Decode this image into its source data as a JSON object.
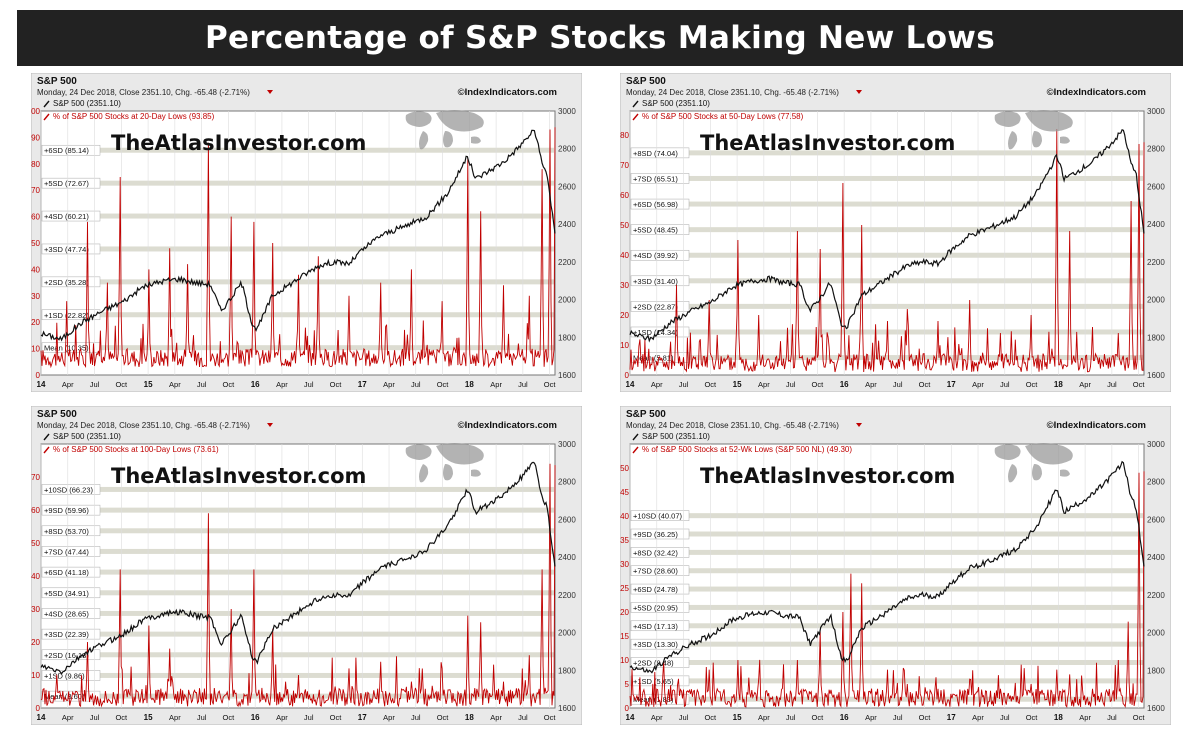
{
  "page_title": "Percentage of S&P Stocks Making New Lows",
  "colors": {
    "title_bg": "#222222",
    "sp500_line": "#111111",
    "indicator_line": "#c00000",
    "band": "#d8d8cc",
    "plot_bg": "#ffffff",
    "panel_bg": "#e9e9e9"
  },
  "chart_data": [
    {
      "type": "line",
      "symbol": "S&P 500",
      "subtitle": "Monday, 24 Dec 2018, Close 2351.10, Chg. -65.48 (-2.71%)",
      "copyright": "©IndexIndicators.com",
      "watermark": "TheAtlasInvestor.com",
      "legend": [
        "S&P 500 (2351.10)",
        "% of S&P 500 Stocks at 20-Day Lows (93.85)"
      ],
      "left_axis": {
        "ticks": [
          0,
          10,
          20,
          30,
          40,
          50,
          60,
          70,
          80,
          90,
          100
        ],
        "ylim": [
          0,
          100
        ]
      },
      "right_axis": {
        "ticks": [
          1600,
          1800,
          2000,
          2200,
          2400,
          2600,
          2800,
          3000
        ],
        "ylim": [
          1600,
          3000
        ]
      },
      "x_ticks": [
        "14",
        "Apr",
        "Jul",
        "Oct",
        "15",
        "Apr",
        "Jul",
        "Oct",
        "16",
        "Apr",
        "Jul",
        "Oct",
        "17",
        "Apr",
        "Jul",
        "Oct",
        "18",
        "Apr",
        "Jul",
        "Oct"
      ],
      "sd_bands": [
        {
          "label": "+6SD (85.14)",
          "value": 85.14
        },
        {
          "label": "+5SD (72.67)",
          "value": 72.67
        },
        {
          "label": "+4SD (60.21)",
          "value": 60.21
        },
        {
          "label": "+3SD (47.74)",
          "value": 47.74
        },
        {
          "label": "+2SD (35.28)",
          "value": 35.28
        },
        {
          "label": "+1SD (22.82)",
          "value": 22.82
        },
        {
          "label": "Mean (10.35)",
          "value": 10.35
        }
      ],
      "last_value": 93.85,
      "baseline": 3,
      "spikes": [
        [
          0.05,
          28
        ],
        [
          0.09,
          58
        ],
        [
          0.13,
          35
        ],
        [
          0.155,
          75
        ],
        [
          0.21,
          40
        ],
        [
          0.25,
          48
        ],
        [
          0.285,
          42
        ],
        [
          0.325,
          88
        ],
        [
          0.37,
          60
        ],
        [
          0.415,
          58
        ],
        [
          0.45,
          50
        ],
        [
          0.5,
          38
        ],
        [
          0.54,
          45
        ],
        [
          0.6,
          30
        ],
        [
          0.66,
          35
        ],
        [
          0.72,
          40
        ],
        [
          0.78,
          28
        ],
        [
          0.83,
          82
        ],
        [
          0.855,
          62
        ],
        [
          0.9,
          34
        ],
        [
          0.95,
          30
        ],
        [
          0.975,
          78
        ],
        [
          0.99,
          93
        ]
      ],
      "sp500": [
        [
          0,
          1820
        ],
        [
          0.04,
          1790
        ],
        [
          0.08,
          1880
        ],
        [
          0.12,
          1940
        ],
        [
          0.16,
          1990
        ],
        [
          0.2,
          2070
        ],
        [
          0.24,
          2100
        ],
        [
          0.27,
          2110
        ],
        [
          0.3,
          2090
        ],
        [
          0.33,
          2080
        ],
        [
          0.35,
          1940
        ],
        [
          0.37,
          2010
        ],
        [
          0.39,
          2090
        ],
        [
          0.41,
          1880
        ],
        [
          0.42,
          1840
        ],
        [
          0.45,
          2020
        ],
        [
          0.5,
          2110
        ],
        [
          0.54,
          2180
        ],
        [
          0.57,
          2200
        ],
        [
          0.6,
          2190
        ],
        [
          0.62,
          2250
        ],
        [
          0.66,
          2340
        ],
        [
          0.7,
          2380
        ],
        [
          0.75,
          2440
        ],
        [
          0.79,
          2560
        ],
        [
          0.83,
          2760
        ],
        [
          0.845,
          2640
        ],
        [
          0.87,
          2680
        ],
        [
          0.9,
          2730
        ],
        [
          0.93,
          2810
        ],
        [
          0.96,
          2900
        ],
        [
          0.975,
          2720
        ],
        [
          0.985,
          2660
        ],
        [
          1.0,
          2351
        ]
      ]
    },
    {
      "type": "line",
      "symbol": "S&P 500",
      "subtitle": "Monday, 24 Dec 2018, Close 2351.10, Chg. -65.48 (-2.71%)",
      "copyright": "©IndexIndicators.com",
      "watermark": "TheAtlasInvestor.com",
      "legend": [
        "S&P 500 (2351.10)",
        "% of S&P 500 Stocks at 50-Day Lows (77.58)"
      ],
      "left_axis": {
        "ticks": [
          0,
          10,
          20,
          30,
          40,
          50,
          60,
          70,
          80
        ],
        "ylim": [
          0,
          88
        ]
      },
      "right_axis": {
        "ticks": [
          1600,
          1800,
          2000,
          2200,
          2400,
          2600,
          2800,
          3000
        ],
        "ylim": [
          1600,
          3000
        ]
      },
      "x_ticks": [
        "14",
        "Apr",
        "Jul",
        "Oct",
        "15",
        "Apr",
        "Jul",
        "Oct",
        "16",
        "Apr",
        "Jul",
        "Oct",
        "17",
        "Apr",
        "Jul",
        "Oct",
        "18",
        "Apr",
        "Jul",
        "Oct"
      ],
      "sd_bands": [
        {
          "label": "+8SD (74.04)",
          "value": 74.04
        },
        {
          "label": "+7SD (65.51)",
          "value": 65.51
        },
        {
          "label": "+6SD (56.98)",
          "value": 56.98
        },
        {
          "label": "+5SD (48.45)",
          "value": 48.45
        },
        {
          "label": "+4SD (39.92)",
          "value": 39.92
        },
        {
          "label": "+3SD (31.40)",
          "value": 31.4
        },
        {
          "label": "+2SD (22.87)",
          "value": 22.87
        },
        {
          "label": "+1SD (14.34)",
          "value": 14.34
        },
        {
          "label": "Mean (5.81)",
          "value": 5.81
        }
      ],
      "last_value": 77.58,
      "baseline": 1,
      "spikes": [
        [
          0.09,
          30
        ],
        [
          0.155,
          25
        ],
        [
          0.21,
          45
        ],
        [
          0.25,
          20
        ],
        [
          0.325,
          48
        ],
        [
          0.37,
          42
        ],
        [
          0.415,
          64
        ],
        [
          0.45,
          50
        ],
        [
          0.5,
          18
        ],
        [
          0.54,
          22
        ],
        [
          0.6,
          18
        ],
        [
          0.66,
          25
        ],
        [
          0.72,
          14
        ],
        [
          0.78,
          20
        ],
        [
          0.83,
          82
        ],
        [
          0.855,
          48
        ],
        [
          0.9,
          16
        ],
        [
          0.95,
          14
        ],
        [
          0.975,
          58
        ],
        [
          0.99,
          77
        ]
      ],
      "sp500": [
        [
          0,
          1820
        ],
        [
          0.04,
          1790
        ],
        [
          0.08,
          1880
        ],
        [
          0.12,
          1940
        ],
        [
          0.16,
          1990
        ],
        [
          0.2,
          2070
        ],
        [
          0.24,
          2100
        ],
        [
          0.27,
          2110
        ],
        [
          0.3,
          2090
        ],
        [
          0.33,
          2080
        ],
        [
          0.35,
          1940
        ],
        [
          0.37,
          2010
        ],
        [
          0.39,
          2090
        ],
        [
          0.41,
          1880
        ],
        [
          0.42,
          1840
        ],
        [
          0.45,
          2020
        ],
        [
          0.5,
          2110
        ],
        [
          0.54,
          2180
        ],
        [
          0.57,
          2200
        ],
        [
          0.6,
          2190
        ],
        [
          0.62,
          2250
        ],
        [
          0.66,
          2340
        ],
        [
          0.7,
          2380
        ],
        [
          0.75,
          2440
        ],
        [
          0.79,
          2560
        ],
        [
          0.83,
          2760
        ],
        [
          0.845,
          2640
        ],
        [
          0.87,
          2680
        ],
        [
          0.9,
          2730
        ],
        [
          0.93,
          2810
        ],
        [
          0.96,
          2900
        ],
        [
          0.975,
          2720
        ],
        [
          0.985,
          2660
        ],
        [
          1.0,
          2351
        ]
      ]
    },
    {
      "type": "line",
      "symbol": "S&P 500",
      "subtitle": "Monday, 24 Dec 2018, Close 2351.10, Chg. -65.48 (-2.71%)",
      "copyright": "©IndexIndicators.com",
      "watermark": "TheAtlasInvestor.com",
      "legend": [
        "S&P 500 (2351.10)",
        "% of S&P 500 Stocks at 100-Day Lows (73.61)"
      ],
      "left_axis": {
        "ticks": [
          0,
          10,
          20,
          30,
          40,
          50,
          60,
          70
        ],
        "ylim": [
          0,
          80
        ]
      },
      "right_axis": {
        "ticks": [
          1600,
          1800,
          2000,
          2200,
          2400,
          2600,
          2800,
          3000
        ],
        "ylim": [
          1600,
          3000
        ]
      },
      "x_ticks": [
        "14",
        "Apr",
        "Jul",
        "Oct",
        "15",
        "Apr",
        "Jul",
        "Oct",
        "16",
        "Apr",
        "Jul",
        "Oct",
        "17",
        "Apr",
        "Jul",
        "Oct",
        "18",
        "Apr",
        "Jul",
        "Oct"
      ],
      "sd_bands": [
        {
          "label": "+10SD (66.23)",
          "value": 66.23
        },
        {
          "label": "+9SD (59.96)",
          "value": 59.96
        },
        {
          "label": "+8SD (53.70)",
          "value": 53.7
        },
        {
          "label": "+7SD (47.44)",
          "value": 47.44
        },
        {
          "label": "+6SD (41.18)",
          "value": 41.18
        },
        {
          "label": "+5SD (34.91)",
          "value": 34.91
        },
        {
          "label": "+4SD (28.65)",
          "value": 28.65
        },
        {
          "label": "+3SD (22.39)",
          "value": 22.39
        },
        {
          "label": "+2SD (16.13)",
          "value": 16.13
        },
        {
          "label": "+1SD (9.86)",
          "value": 9.86
        },
        {
          "label": "Mean (3.60)",
          "value": 3.6
        }
      ],
      "last_value": 73.61,
      "baseline": 0.5,
      "spikes": [
        [
          0.09,
          20
        ],
        [
          0.155,
          42
        ],
        [
          0.21,
          25
        ],
        [
          0.25,
          18
        ],
        [
          0.325,
          59
        ],
        [
          0.37,
          30
        ],
        [
          0.415,
          42
        ],
        [
          0.45,
          24
        ],
        [
          0.5,
          10
        ],
        [
          0.6,
          12
        ],
        [
          0.66,
          14
        ],
        [
          0.72,
          8
        ],
        [
          0.78,
          12
        ],
        [
          0.83,
          28
        ],
        [
          0.855,
          26
        ],
        [
          0.9,
          8
        ],
        [
          0.95,
          16
        ],
        [
          0.975,
          42
        ],
        [
          0.99,
          74
        ]
      ],
      "sp500": [
        [
          0,
          1820
        ],
        [
          0.04,
          1790
        ],
        [
          0.08,
          1880
        ],
        [
          0.12,
          1940
        ],
        [
          0.16,
          1990
        ],
        [
          0.2,
          2070
        ],
        [
          0.24,
          2100
        ],
        [
          0.27,
          2110
        ],
        [
          0.3,
          2090
        ],
        [
          0.33,
          2080
        ],
        [
          0.35,
          1940
        ],
        [
          0.37,
          2010
        ],
        [
          0.39,
          2090
        ],
        [
          0.41,
          1880
        ],
        [
          0.42,
          1840
        ],
        [
          0.45,
          2020
        ],
        [
          0.5,
          2110
        ],
        [
          0.54,
          2180
        ],
        [
          0.57,
          2200
        ],
        [
          0.6,
          2190
        ],
        [
          0.62,
          2250
        ],
        [
          0.66,
          2340
        ],
        [
          0.7,
          2380
        ],
        [
          0.75,
          2440
        ],
        [
          0.79,
          2560
        ],
        [
          0.83,
          2760
        ],
        [
          0.845,
          2640
        ],
        [
          0.87,
          2680
        ],
        [
          0.9,
          2730
        ],
        [
          0.93,
          2810
        ],
        [
          0.96,
          2900
        ],
        [
          0.975,
          2720
        ],
        [
          0.985,
          2660
        ],
        [
          1.0,
          2351
        ]
      ]
    },
    {
      "type": "line",
      "symbol": "S&P 500",
      "subtitle": "Monday, 24 Dec 2018, Close 2351.10, Chg. -65.48 (-2.71%)",
      "copyright": "©IndexIndicators.com",
      "watermark": "TheAtlasInvestor.com",
      "legend": [
        "S&P 500 (2351.10)",
        "% of S&P 500 Stocks at 52-Wk Lows (S&P 500 NL) (49.30)"
      ],
      "left_axis": {
        "ticks": [
          0,
          5,
          10,
          15,
          20,
          25,
          30,
          35,
          40,
          45,
          50
        ],
        "ylim": [
          0,
          55
        ]
      },
      "right_axis": {
        "ticks": [
          1600,
          1800,
          2000,
          2200,
          2400,
          2600,
          2800,
          3000
        ],
        "ylim": [
          1600,
          3000
        ]
      },
      "x_ticks": [
        "14",
        "Apr",
        "Jul",
        "Oct",
        "15",
        "Apr",
        "Jul",
        "Oct",
        "16",
        "Apr",
        "Jul",
        "Oct",
        "17",
        "Apr",
        "Jul",
        "Oct",
        "18",
        "Apr",
        "Jul",
        "Oct"
      ],
      "sd_bands": [
        {
          "label": "+10SD (40.07)",
          "value": 40.07
        },
        {
          "label": "+9SD (36.25)",
          "value": 36.25
        },
        {
          "label": "+8SD (32.42)",
          "value": 32.42
        },
        {
          "label": "+7SD (28.60)",
          "value": 28.6
        },
        {
          "label": "+6SD (24.78)",
          "value": 24.78
        },
        {
          "label": "+5SD (20.95)",
          "value": 20.95
        },
        {
          "label": "+4SD (17.13)",
          "value": 17.13
        },
        {
          "label": "+3SD (13.30)",
          "value": 13.3
        },
        {
          "label": "+2SD (9.48)",
          "value": 9.48
        },
        {
          "label": "+1SD (5.65)",
          "value": 5.65
        },
        {
          "label": "Mean (1.83)",
          "value": 1.83
        }
      ],
      "last_value": 49.3,
      "baseline": 0.2,
      "spikes": [
        [
          0.155,
          8
        ],
        [
          0.21,
          10
        ],
        [
          0.25,
          6
        ],
        [
          0.325,
          10
        ],
        [
          0.37,
          16
        ],
        [
          0.415,
          20
        ],
        [
          0.43,
          28
        ],
        [
          0.45,
          26
        ],
        [
          0.5,
          8
        ],
        [
          0.54,
          5
        ],
        [
          0.6,
          4
        ],
        [
          0.66,
          6
        ],
        [
          0.72,
          4
        ],
        [
          0.78,
          5
        ],
        [
          0.83,
          8
        ],
        [
          0.855,
          7
        ],
        [
          0.9,
          4
        ],
        [
          0.95,
          10
        ],
        [
          0.97,
          18
        ],
        [
          0.99,
          49
        ]
      ],
      "sp500": [
        [
          0,
          1820
        ],
        [
          0.04,
          1790
        ],
        [
          0.08,
          1880
        ],
        [
          0.12,
          1940
        ],
        [
          0.16,
          1990
        ],
        [
          0.2,
          2070
        ],
        [
          0.24,
          2100
        ],
        [
          0.27,
          2110
        ],
        [
          0.3,
          2090
        ],
        [
          0.33,
          2080
        ],
        [
          0.35,
          1940
        ],
        [
          0.37,
          2010
        ],
        [
          0.39,
          2090
        ],
        [
          0.41,
          1880
        ],
        [
          0.42,
          1840
        ],
        [
          0.45,
          2020
        ],
        [
          0.5,
          2110
        ],
        [
          0.54,
          2180
        ],
        [
          0.57,
          2200
        ],
        [
          0.6,
          2190
        ],
        [
          0.62,
          2250
        ],
        [
          0.66,
          2340
        ],
        [
          0.7,
          2380
        ],
        [
          0.75,
          2440
        ],
        [
          0.79,
          2560
        ],
        [
          0.83,
          2760
        ],
        [
          0.845,
          2640
        ],
        [
          0.87,
          2680
        ],
        [
          0.9,
          2730
        ],
        [
          0.93,
          2810
        ],
        [
          0.96,
          2900
        ],
        [
          0.975,
          2720
        ],
        [
          0.985,
          2660
        ],
        [
          1.0,
          2351
        ]
      ]
    }
  ]
}
